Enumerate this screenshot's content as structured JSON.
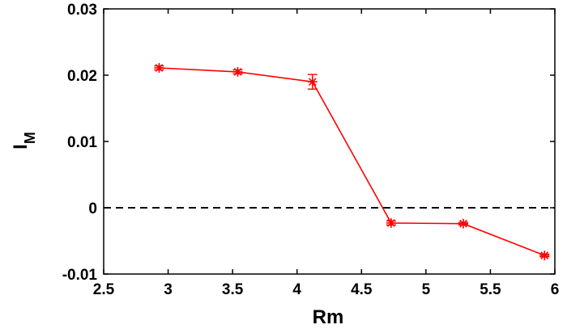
{
  "chart_data": {
    "type": "line",
    "xlabel": "Rm",
    "ylabel": "I",
    "ylabel_subscript": "M",
    "xlim": [
      2.5,
      6
    ],
    "ylim": [
      -0.01,
      0.03
    ],
    "xticks": [
      "2.5",
      "3",
      "3.5",
      "4",
      "4.5",
      "5",
      "5.5",
      "6"
    ],
    "yticks": [
      "-0.01",
      "0",
      "0.01",
      "0.02",
      "0.03"
    ],
    "grid": false,
    "reference_line": {
      "y": 0,
      "style": "dashed",
      "color": "#000000"
    },
    "series": [
      {
        "color": "#ff0000",
        "marker": "asterisk",
        "x": [
          2.93,
          3.54,
          4.12,
          4.73,
          5.29,
          5.92
        ],
        "y": [
          0.0211,
          0.0205,
          0.019,
          -0.0023,
          -0.0024,
          -0.0072
        ],
        "error": [
          0.0003,
          0.0003,
          0.0011,
          0.0003,
          0.0002,
          0.0002
        ]
      }
    ]
  }
}
